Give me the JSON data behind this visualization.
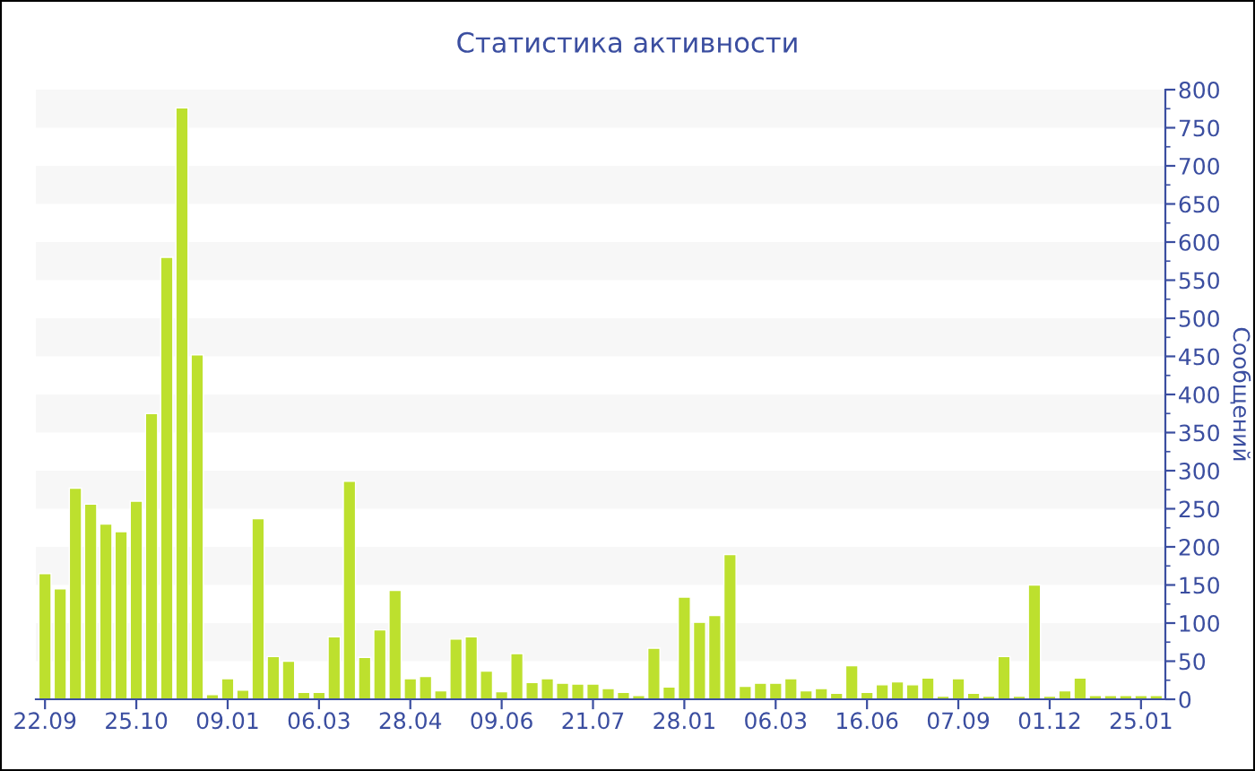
{
  "chart_data": {
    "type": "bar",
    "title": "Статистика активности",
    "ylabel": "Сообщений",
    "categories": [
      "22.09",
      null,
      null,
      null,
      null,
      null,
      "25.10",
      null,
      null,
      null,
      null,
      null,
      "09.01",
      null,
      null,
      null,
      null,
      null,
      "06.03",
      null,
      null,
      null,
      null,
      null,
      "28.04",
      null,
      null,
      null,
      null,
      null,
      "09.06",
      null,
      null,
      null,
      null,
      null,
      "21.07",
      null,
      null,
      null,
      null,
      null,
      "28.01",
      null,
      null,
      null,
      null,
      null,
      "06.03",
      null,
      null,
      null,
      null,
      null,
      "16.06",
      null,
      null,
      null,
      null,
      null,
      "07.09",
      null,
      null,
      null,
      null,
      null,
      "01.12",
      null,
      null,
      null,
      null,
      null,
      "25.01",
      null
    ],
    "values": [
      165,
      145,
      277,
      256,
      230,
      220,
      260,
      375,
      580,
      776,
      452,
      6,
      27,
      12,
      237,
      56,
      50,
      9,
      9,
      82,
      286,
      55,
      91,
      143,
      27,
      30,
      11,
      79,
      82,
      37,
      10,
      60,
      22,
      27,
      21,
      20,
      20,
      14,
      9,
      5,
      67,
      16,
      134,
      101,
      110,
      190,
      17,
      21,
      21,
      27,
      11,
      14,
      8,
      44,
      9,
      19,
      23,
      19,
      28,
      4,
      27,
      8,
      4,
      56,
      4,
      150,
      4,
      11,
      28,
      5,
      5,
      5,
      5,
      5
    ],
    "color": "#bde02e",
    "ylim": [
      0,
      800
    ],
    "yticks": [
      0,
      50,
      100,
      150,
      200,
      250,
      300,
      350,
      400,
      450,
      500,
      550,
      600,
      650,
      700,
      750,
      800
    ],
    "bands": [
      {
        "axis": "y",
        "from": 750,
        "to": 800,
        "color": "#f7f7f7"
      },
      {
        "axis": "y",
        "from": 650,
        "to": 700,
        "color": "#f7f7f7"
      },
      {
        "axis": "y",
        "from": 550,
        "to": 600,
        "color": "#f7f7f7"
      },
      {
        "axis": "y",
        "from": 450,
        "to": 500,
        "color": "#f7f7f7"
      },
      {
        "axis": "y",
        "from": 350,
        "to": 400,
        "color": "#f7f7f7"
      },
      {
        "axis": "y",
        "from": 250,
        "to": 300,
        "color": "#f7f7f7"
      },
      {
        "axis": "y",
        "from": 150,
        "to": 200,
        "color": "#f7f7f7"
      },
      {
        "axis": "y",
        "from": 50,
        "to": 100,
        "color": "#f7f7f7"
      }
    ],
    "grid": false,
    "legend": false
  }
}
